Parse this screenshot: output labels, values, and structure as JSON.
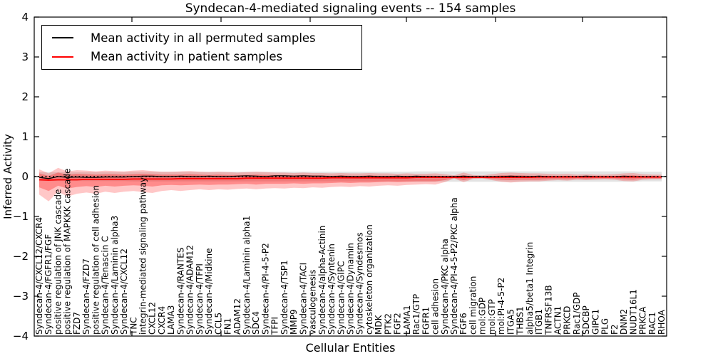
{
  "chart_data": {
    "type": "line",
    "title": "Syndecan-4-mediated signaling events -- 154 samples",
    "xlabel": "Cellular Entities",
    "ylabel": "Inferred Activity",
    "ylim": [
      -4,
      4
    ],
    "yticks": [
      -4,
      -3,
      -2,
      -1,
      0,
      1,
      2,
      3,
      4
    ],
    "grid": false,
    "legend_position": "upper left",
    "zero_line": {
      "y": 0,
      "style": "dotted",
      "color": "#000000"
    },
    "categories": [
      "Syndecan-4/CXCL12/CXCR4",
      "Syndecan-4/FGFR1/FGF",
      "positive regulation of JNK cascade",
      "positive regulation of MAPKKK cascade",
      "FZD7",
      "Syndecan-4/FZD7",
      "positive regulation of cell adhesion",
      "Syndecan-4/Tenascin C",
      "Syndecan-4/Laminin alpha3",
      "Syndecan-4/CXCL12",
      "TNC",
      "integrin-mediated signaling pathway",
      "CXCL12",
      "CXCR4",
      "LAMA3",
      "Syndecan-4/RANTES",
      "Syndecan-4/ADAM12",
      "Syndecan-4/TFPI",
      "Syndecan-4/Midkine",
      "CCL5",
      "FN1",
      "ADAM12",
      "Syndecan-4/Laminin alpha1",
      "SDC4",
      "Syndecan-4/PI-4-5-P2",
      "TFPI",
      "Syndecan-4/TSP1",
      "MMP9",
      "Syndecan-4/TACI",
      "vasculogenesis",
      "Syndecan-4/alpha-Actinin",
      "Syndecan-4/Syntenin",
      "Syndecan-4/GIPC",
      "Syndecan-4/Dynamin",
      "Syndecan-4/Syndesmos",
      "cytoskeleton organization",
      "MDK",
      "PTK2",
      "FGF2",
      "LAMA1",
      "Rac1/GTP",
      "FGFR1",
      "cell adhesion",
      "Syndecan-4/PKC alpha",
      "Syndecan-4/PI-4-5-P2/PKC alpha",
      "FGF6",
      "cell migration",
      "mol:GDP",
      "mol:GTP",
      "mol:PI-4-5-P2",
      "ITGA5",
      "THBS1",
      "alpha5/beta1 Integrin",
      "ITGB1",
      "TNFRSF13B",
      "ACTN1",
      "PRKCD",
      "Rac1/GDP",
      "SDCBP",
      "GIPC1",
      "PLG",
      "F2",
      "DNM2",
      "NUDT16L1",
      "PRKCA",
      "RAC1",
      "RHOA"
    ],
    "series": [
      {
        "name": "Mean activity in all permuted samples",
        "color": "#000000",
        "style": "solid",
        "values": [
          -0.02,
          -0.05,
          0.0,
          -0.02,
          -0.01,
          -0.02,
          -0.02,
          -0.01,
          -0.01,
          -0.01,
          0.0,
          0.01,
          0.01,
          0.0,
          0.0,
          0.01,
          0.0,
          0.0,
          0.01,
          0.0,
          0.0,
          0.01,
          0.02,
          0.01,
          0.0,
          0.02,
          0.02,
          0.01,
          0.02,
          0.01,
          0.01,
          0.0,
          0.01,
          0.0,
          0.0,
          0.01,
          0.0,
          0.0,
          0.01,
          0.0,
          0.01,
          0.0,
          0.0,
          0.0,
          0.0,
          0.01,
          0.0,
          0.0,
          0.0,
          0.0,
          0.01,
          0.0,
          0.0,
          0.01,
          0.0,
          0.0,
          0.0,
          0.0,
          0.01,
          0.0,
          0.0,
          0.0,
          0.01,
          0.0,
          0.0,
          0.0,
          -0.01
        ]
      },
      {
        "name": "Mean activity in patient samples",
        "color": "#ff0000",
        "style": "solid",
        "values": [
          -0.08,
          -0.09,
          -0.08,
          -0.08,
          -0.08,
          -0.07,
          -0.07,
          -0.07,
          -0.07,
          -0.07,
          -0.06,
          -0.06,
          -0.06,
          -0.06,
          -0.06,
          -0.05,
          -0.05,
          -0.05,
          -0.05,
          -0.05,
          -0.05,
          -0.05,
          -0.04,
          -0.04,
          -0.04,
          -0.04,
          -0.04,
          -0.04,
          -0.04,
          -0.04,
          -0.04,
          -0.03,
          -0.03,
          -0.03,
          -0.03,
          -0.03,
          -0.03,
          -0.03,
          -0.03,
          -0.03,
          -0.02,
          -0.02,
          -0.02,
          -0.02,
          -0.02,
          -0.02,
          -0.02,
          -0.02,
          -0.02,
          -0.02,
          -0.02,
          -0.02,
          -0.02,
          -0.01,
          -0.01,
          -0.01,
          -0.01,
          -0.01,
          -0.01,
          -0.01,
          -0.01,
          -0.01,
          -0.01,
          -0.01,
          -0.01,
          -0.01,
          -0.01
        ]
      }
    ],
    "bands": [
      {
        "name": "permuted-samples-band",
        "color": "#c8c8c8",
        "opacity": 0.5,
        "upper": [
          0.11,
          0.11,
          0.11,
          0.11,
          0.11,
          0.11,
          0.11,
          0.11,
          0.11,
          0.11,
          0.12,
          0.12,
          0.12,
          0.12,
          0.12,
          0.12,
          0.12,
          0.12,
          0.12,
          0.12,
          0.12,
          0.12,
          0.12,
          0.12,
          0.12,
          0.12,
          0.12,
          0.12,
          0.12,
          0.12,
          0.12,
          0.12,
          0.12,
          0.12,
          0.12,
          0.12,
          0.12,
          0.12,
          0.12,
          0.12,
          0.13,
          0.13,
          0.13,
          0.13,
          0.13,
          0.13,
          0.13,
          0.13,
          0.13,
          0.13,
          0.13,
          0.13,
          0.13,
          0.13,
          0.13,
          0.13,
          0.13,
          0.13,
          0.13,
          0.13,
          0.13,
          0.13,
          0.13,
          0.13,
          0.12,
          0.12,
          0.12
        ],
        "lower": [
          -0.11,
          -0.11,
          -0.11,
          -0.11,
          -0.11,
          -0.11,
          -0.11,
          -0.11,
          -0.11,
          -0.11,
          -0.12,
          -0.12,
          -0.12,
          -0.12,
          -0.12,
          -0.12,
          -0.12,
          -0.12,
          -0.12,
          -0.12,
          -0.12,
          -0.12,
          -0.12,
          -0.12,
          -0.12,
          -0.12,
          -0.12,
          -0.12,
          -0.12,
          -0.12,
          -0.12,
          -0.12,
          -0.12,
          -0.12,
          -0.12,
          -0.12,
          -0.12,
          -0.12,
          -0.12,
          -0.12,
          -0.13,
          -0.13,
          -0.13,
          -0.13,
          -0.13,
          -0.13,
          -0.13,
          -0.13,
          -0.13,
          -0.13,
          -0.13,
          -0.13,
          -0.13,
          -0.13,
          -0.13,
          -0.13,
          -0.13,
          -0.13,
          -0.13,
          -0.13,
          -0.13,
          -0.13,
          -0.13,
          -0.13,
          -0.12,
          -0.12,
          -0.12
        ]
      },
      {
        "name": "patient-samples-band-outer",
        "color": "#ff0000",
        "opacity": 0.22,
        "upper": [
          0.18,
          0.08,
          0.22,
          0.13,
          0.16,
          0.15,
          0.13,
          0.15,
          0.14,
          0.13,
          0.15,
          0.16,
          0.14,
          0.12,
          0.12,
          0.13,
          0.14,
          0.12,
          0.11,
          0.12,
          0.11,
          0.1,
          0.11,
          0.12,
          0.11,
          0.1,
          0.1,
          0.09,
          0.1,
          0.09,
          0.09,
          0.08,
          0.09,
          0.08,
          0.08,
          0.09,
          0.08,
          0.08,
          0.07,
          0.08,
          0.07,
          0.07,
          0.08,
          0.06,
          0.03,
          0.1,
          0.04,
          0.03,
          0.06,
          0.09,
          0.1,
          0.09,
          0.08,
          0.08,
          0.07,
          0.06,
          0.07,
          0.05,
          0.06,
          0.05,
          0.05,
          0.06,
          0.08,
          0.09,
          0.06,
          0.05,
          0.05
        ],
        "lower": [
          -0.45,
          -0.62,
          -0.38,
          -0.5,
          -0.43,
          -0.4,
          -0.43,
          -0.38,
          -0.41,
          -0.38,
          -0.36,
          -0.39,
          -0.41,
          -0.36,
          -0.34,
          -0.36,
          -0.34,
          -0.32,
          -0.34,
          -0.32,
          -0.33,
          -0.31,
          -0.3,
          -0.32,
          -0.3,
          -0.29,
          -0.3,
          -0.28,
          -0.29,
          -0.27,
          -0.28,
          -0.26,
          -0.25,
          -0.26,
          -0.24,
          -0.25,
          -0.23,
          -0.22,
          -0.23,
          -0.21,
          -0.2,
          -0.19,
          -0.2,
          -0.14,
          -0.05,
          -0.14,
          -0.06,
          -0.05,
          -0.09,
          -0.13,
          -0.15,
          -0.13,
          -0.12,
          -0.12,
          -0.1,
          -0.09,
          -0.1,
          -0.08,
          -0.09,
          -0.08,
          -0.07,
          -0.08,
          -0.11,
          -0.12,
          -0.08,
          -0.07,
          -0.07
        ]
      },
      {
        "name": "patient-samples-band-inner",
        "color": "#ff0000",
        "opacity": 0.3,
        "upper": [
          0.08,
          0.02,
          0.1,
          0.05,
          0.07,
          0.06,
          0.05,
          0.06,
          0.06,
          0.05,
          0.06,
          0.07,
          0.06,
          0.05,
          0.05,
          0.05,
          0.06,
          0.05,
          0.04,
          0.05,
          0.04,
          0.04,
          0.04,
          0.05,
          0.04,
          0.04,
          0.04,
          0.03,
          0.04,
          0.03,
          0.03,
          0.02,
          0.03,
          0.02,
          0.02,
          0.03,
          0.02,
          0.02,
          0.02,
          0.02,
          0.02,
          0.02,
          0.02,
          0.01,
          0.0,
          0.03,
          0.0,
          0.0,
          0.01,
          0.03,
          0.03,
          0.03,
          0.02,
          0.02,
          0.02,
          0.01,
          0.02,
          0.01,
          0.01,
          0.01,
          0.01,
          0.01,
          0.02,
          0.03,
          0.01,
          0.01,
          0.01
        ],
        "lower": [
          -0.27,
          -0.36,
          -0.23,
          -0.3,
          -0.26,
          -0.24,
          -0.26,
          -0.23,
          -0.25,
          -0.23,
          -0.22,
          -0.23,
          -0.25,
          -0.22,
          -0.21,
          -0.22,
          -0.21,
          -0.2,
          -0.21,
          -0.2,
          -0.2,
          -0.19,
          -0.18,
          -0.2,
          -0.18,
          -0.18,
          -0.18,
          -0.17,
          -0.18,
          -0.17,
          -0.17,
          -0.16,
          -0.15,
          -0.16,
          -0.15,
          -0.15,
          -0.14,
          -0.13,
          -0.14,
          -0.13,
          -0.12,
          -0.12,
          -0.12,
          -0.09,
          -0.04,
          -0.09,
          -0.04,
          -0.04,
          -0.06,
          -0.08,
          -0.09,
          -0.08,
          -0.08,
          -0.08,
          -0.07,
          -0.06,
          -0.07,
          -0.05,
          -0.06,
          -0.05,
          -0.05,
          -0.05,
          -0.07,
          -0.08,
          -0.05,
          -0.05,
          -0.05
        ]
      }
    ]
  }
}
